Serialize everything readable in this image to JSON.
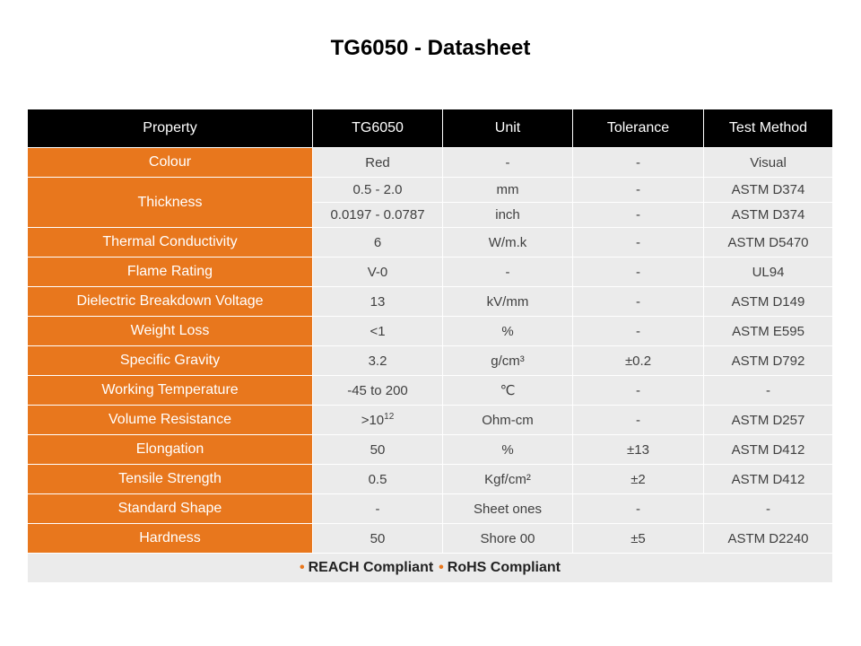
{
  "title": "TG6050 - Datasheet",
  "table": {
    "headers": [
      "Property",
      "TG6050",
      "Unit",
      "Tolerance",
      "Test Method"
    ],
    "rows": [
      {
        "property": "Colour",
        "value": "Red",
        "unit": "-",
        "tolerance": "-",
        "method": "Visual"
      },
      {
        "property": "Thickness",
        "value": "0.5 - 2.0",
        "unit": "mm",
        "tolerance": "-",
        "method": "ASTM D374",
        "value2": "0.0197 - 0.0787",
        "unit2": "inch",
        "tolerance2": "-",
        "method2": "ASTM D374"
      },
      {
        "property": "Thermal Conductivity",
        "value": "6",
        "unit": "W/m.k",
        "tolerance": "-",
        "method": "ASTM D5470"
      },
      {
        "property": "Flame Rating",
        "value": "V-0",
        "unit": "-",
        "tolerance": "-",
        "method": "UL94"
      },
      {
        "property": "Dielectric Breakdown Voltage",
        "value": "13",
        "unit": "kV/mm",
        "tolerance": "-",
        "method": "ASTM D149"
      },
      {
        "property": "Weight Loss",
        "value": "<1",
        "unit": "%",
        "tolerance": "-",
        "method": "ASTM E595"
      },
      {
        "property": "Specific Gravity",
        "value": "3.2",
        "unit": "g/cm³",
        "tolerance": "±0.2",
        "method": "ASTM D792"
      },
      {
        "property": "Working Temperature",
        "value": "-45 to 200",
        "unit": "℃",
        "tolerance": "-",
        "method": "-"
      },
      {
        "property": "Volume Resistance",
        "value": ">10",
        "value_exp": "12",
        "unit": "Ohm-cm",
        "tolerance": "-",
        "method": "ASTM D257"
      },
      {
        "property": "Elongation",
        "value": "50",
        "unit": "%",
        "tolerance": "±13",
        "method": "ASTM D412"
      },
      {
        "property": "Tensile Strength",
        "value": "0.5",
        "unit": "Kgf/cm²",
        "tolerance": "±2",
        "method": "ASTM D412"
      },
      {
        "property": "Standard Shape",
        "value": "-",
        "unit": "Sheet ones",
        "tolerance": "-",
        "method": "-"
      },
      {
        "property": "Hardness",
        "value": "50",
        "unit": "Shore 00",
        "tolerance": "±5",
        "method": "ASTM D2240"
      }
    ],
    "footer": {
      "bullet": "•",
      "items": [
        "REACH Compliant",
        "RoHS Compliant"
      ]
    }
  },
  "colors": {
    "accent": "#e8771d",
    "header_bg": "#000000",
    "cell_bg": "#ebebeb"
  }
}
